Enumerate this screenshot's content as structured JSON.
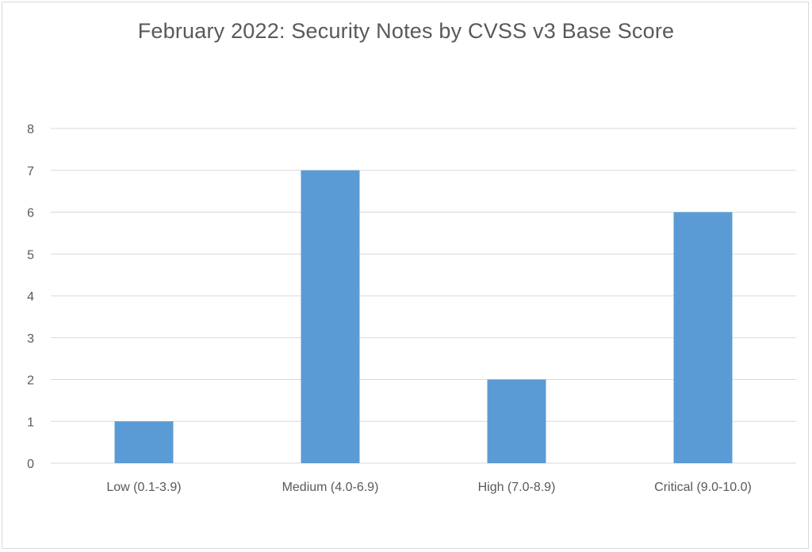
{
  "chart_data": {
    "type": "bar",
    "title": "February 2022: Security Notes by CVSS v3 Base Score",
    "categories": [
      "Low (0.1-3.9)",
      "Medium (4.0-6.9)",
      "High (7.0-8.9)",
      "Critical (9.0-10.0)"
    ],
    "values": [
      1,
      7,
      2,
      6
    ],
    "xlabel": "",
    "ylabel": "",
    "ylim": [
      0,
      8
    ],
    "yticks": [
      "0",
      "1",
      "2",
      "3",
      "4",
      "5",
      "6",
      "7",
      "8"
    ],
    "grid": true,
    "legend": "none",
    "bar_color": "#5b9bd5",
    "grid_color": "#d9d9d9",
    "text_color": "#595959"
  }
}
